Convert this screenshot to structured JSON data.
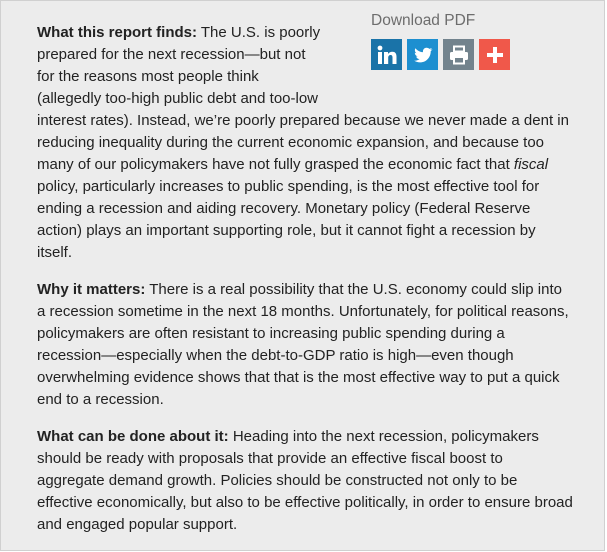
{
  "share": {
    "download_label": "Download PDF",
    "icons": [
      {
        "name": "linkedin-icon",
        "color": "#1a73a8"
      },
      {
        "name": "twitter-icon",
        "color": "#1d8fd0"
      },
      {
        "name": "print-icon",
        "color": "#72838d"
      },
      {
        "name": "more-plus-icon",
        "color": "#f0584a"
      }
    ]
  },
  "sections": [
    {
      "lead": "What this report finds:",
      "text_before_em": " The U.S. is poorly prepared for the next recession—but not for the reasons most people think (allegedly too-high public debt and too-low interest rates). Instead, we’re poorly prepared because we never made a dent in reducing inequality during the current economic expansion, and because too many of our policymakers have not fully grasped the economic fact that ",
      "em": "fiscal",
      "text_after_em": " policy, particularly increases to public spending, is the most effective tool for ending a recession and aiding recovery. Monetary policy (Federal Reserve action) plays an important supporting role, but it cannot fight a recession by itself."
    },
    {
      "lead": "Why it matters:",
      "text": " There is a real possibility that the U.S. economy could slip into a recession sometime in the next 18 months. Unfortunately, for political reasons, policymakers are often resistant to increasing public spending during a recession—especially when the debt-to-GDP ratio is high—even though overwhelming evidence shows that that is the most effective way to put a quick end to a recession."
    },
    {
      "lead": "What can be done about it:",
      "text": " Heading into the next recession, policymakers should be ready with proposals that provide an effective fiscal boost to aggregate demand growth. Policies should be constructed not only to be effective economically, but also to be effective politically, in order to ensure broad and engaged popular support."
    }
  ]
}
